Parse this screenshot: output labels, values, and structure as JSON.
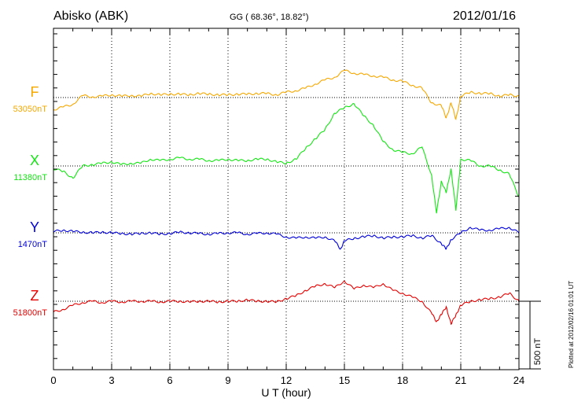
{
  "header": {
    "station": "Abisko (ABK)",
    "coords": "GG ( 68.36°,  18.82°)",
    "date": "2012/01/16",
    "footnote": "Plotted at 2012/02/16 01:01  UT"
  },
  "chart_data": {
    "type": "line",
    "xlabel": "U T (hour)",
    "ylabel": "",
    "xlim": [
      0,
      24
    ],
    "x_ticks": [
      0,
      3,
      6,
      9,
      12,
      15,
      18,
      21,
      24
    ],
    "grid": "dotted vertical lines every 3 h; dotted baseline per component",
    "scale_bar": {
      "label": "500 nT",
      "value_nT": 500
    },
    "series": [
      {
        "name": "F",
        "baseline_label": "53050nT",
        "color": "#f5a800",
        "x": [
          0,
          0.5,
          1,
          1.5,
          2,
          2.5,
          3,
          3.5,
          4,
          4.5,
          5,
          5.5,
          6,
          6.5,
          7,
          7.5,
          8,
          8.5,
          9,
          9.5,
          10,
          10.5,
          11,
          11.5,
          12,
          12.5,
          13,
          13.5,
          14,
          14.5,
          15,
          15.5,
          16,
          16.5,
          17,
          17.5,
          18,
          18.5,
          19,
          19.5,
          20,
          20.25,
          20.5,
          20.75,
          21,
          21.5,
          22,
          22.5,
          23,
          23.5,
          24
        ],
        "values": [
          -90,
          -70,
          -50,
          15,
          5,
          10,
          20,
          10,
          15,
          10,
          30,
          20,
          25,
          25,
          20,
          30,
          25,
          20,
          20,
          25,
          25,
          30,
          30,
          20,
          40,
          50,
          70,
          100,
          130,
          150,
          200,
          180,
          170,
          160,
          150,
          130,
          120,
          90,
          70,
          -40,
          -60,
          -150,
          -40,
          -160,
          10,
          40,
          30,
          30,
          10,
          20,
          10
        ]
      },
      {
        "name": "X",
        "baseline_label": "11380nT",
        "color": "#14e614",
        "x": [
          0,
          0.5,
          1,
          1.5,
          2,
          2.5,
          3,
          3.5,
          4,
          4.5,
          5,
          5.5,
          6,
          6.5,
          7,
          7.5,
          8,
          8.5,
          9,
          9.5,
          10,
          10.5,
          11,
          11.5,
          12,
          12.5,
          13,
          13.5,
          14,
          14.5,
          15,
          15.5,
          16,
          16.5,
          17,
          17.5,
          18,
          18.5,
          19,
          19.5,
          19.75,
          20,
          20.25,
          20.5,
          20.75,
          21,
          21.5,
          22,
          22.5,
          23,
          23.5,
          24
        ],
        "values": [
          -20,
          -40,
          -90,
          0,
          10,
          20,
          30,
          10,
          20,
          20,
          50,
          40,
          50,
          60,
          50,
          50,
          40,
          40,
          50,
          40,
          40,
          50,
          50,
          30,
          20,
          50,
          130,
          200,
          270,
          390,
          430,
          460,
          370,
          300,
          180,
          120,
          100,
          90,
          140,
          -70,
          -350,
          -110,
          -200,
          -20,
          -330,
          50,
          40,
          0,
          0,
          -30,
          -60,
          -230
        ]
      },
      {
        "name": "Y",
        "baseline_label": "1470nT",
        "color": "#0000dc",
        "x": [
          0,
          0.5,
          1,
          1.5,
          2,
          2.5,
          3,
          3.5,
          4,
          4.5,
          5,
          5.5,
          6,
          6.5,
          7,
          7.5,
          8,
          8.5,
          9,
          9.5,
          10,
          10.5,
          11,
          11.5,
          12,
          12.5,
          13,
          13.5,
          14,
          14.5,
          14.8,
          15,
          15.5,
          16,
          16.5,
          17,
          17.5,
          18,
          18.5,
          19,
          19.5,
          20,
          20.25,
          20.5,
          21,
          21.5,
          22,
          22.5,
          23,
          23.5,
          24
        ],
        "values": [
          10,
          20,
          10,
          5,
          0,
          5,
          0,
          -5,
          -10,
          -5,
          0,
          -10,
          -5,
          5,
          0,
          -5,
          -10,
          -5,
          0,
          0,
          -10,
          -5,
          0,
          -10,
          -30,
          -40,
          -30,
          -40,
          -30,
          -60,
          -120,
          -60,
          -40,
          -30,
          -20,
          -40,
          -30,
          -30,
          -20,
          -40,
          -20,
          -80,
          -120,
          -50,
          0,
          40,
          20,
          20,
          30,
          40,
          0
        ]
      },
      {
        "name": "Z",
        "baseline_label": "51800nT",
        "color": "#e60000",
        "x": [
          0,
          0.5,
          1,
          1.5,
          2,
          2.5,
          3,
          3.5,
          4,
          4.5,
          5,
          5.5,
          6,
          6.5,
          7,
          7.5,
          8,
          8.5,
          9,
          9.5,
          10,
          10.5,
          11,
          11.5,
          12,
          12.5,
          13,
          13.5,
          14,
          14.5,
          15,
          15.5,
          16,
          16.5,
          17,
          17.5,
          18,
          18.5,
          19,
          19.5,
          19.75,
          20,
          20.25,
          20.5,
          20.75,
          21,
          21.5,
          22,
          22.5,
          23,
          23.5,
          24
        ],
        "values": [
          -80,
          -60,
          -30,
          -10,
          0,
          -10,
          0,
          -5,
          0,
          0,
          0,
          -5,
          0,
          0,
          -5,
          0,
          0,
          -5,
          0,
          0,
          10,
          0,
          0,
          -5,
          20,
          40,
          80,
          110,
          130,
          100,
          150,
          90,
          120,
          100,
          130,
          80,
          60,
          30,
          0,
          -90,
          -150,
          -100,
          -40,
          -170,
          -100,
          -30,
          0,
          10,
          20,
          30,
          60,
          0
        ]
      }
    ]
  }
}
